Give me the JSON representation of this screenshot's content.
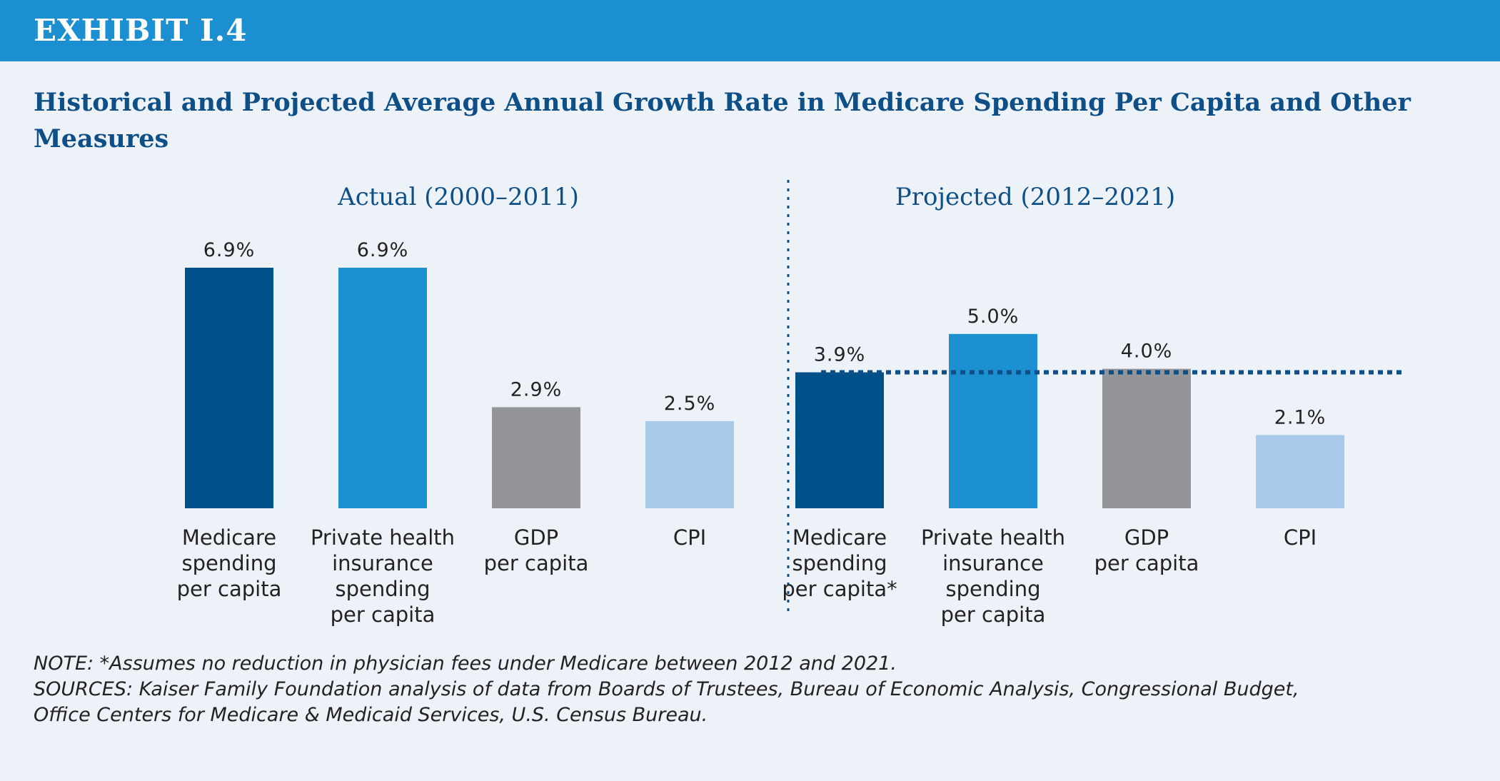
{
  "exhibit": "EXHIBIT I.4",
  "notes": {
    "note": "NOTE:  *Assumes no reduction in physician fees under Medicare between 2012 and 2021.",
    "sources_line1": "SOURCES:  Kaiser Family Foundation analysis of data from Boards of Trustees, Bureau of Economic Analysis, Congressional Budget,",
    "sources_line2": "Office Centers for Medicare & Medicaid Services, U.S. Census Bureau."
  },
  "colors": {
    "banner": "#1b8fd0",
    "background": "#edf2f9",
    "title": "#0d4f86",
    "medicare": "#00508a",
    "private": "#1b8fd0",
    "gdp": "#939598",
    "cpi": "#a9c9ea",
    "reference_line": "#0d4f86"
  },
  "chart_data": {
    "type": "bar",
    "title": "Historical and Projected Average Annual Growth Rate in Medicare Spending Per Capita and Other Measures",
    "ylim": [
      0,
      6.9
    ],
    "grid": false,
    "legend": "none",
    "panels": [
      {
        "name": "Actual (2000–2011)",
        "categories": [
          [
            "Medicare",
            "spending",
            "per capita"
          ],
          [
            "Private health",
            "insurance",
            "spending",
            "per capita"
          ],
          [
            "GDP",
            "per capita"
          ],
          [
            "CPI"
          ]
        ],
        "values": [
          6.9,
          6.9,
          2.9,
          2.5
        ],
        "labels": [
          "6.9%",
          "6.9%",
          "2.9%",
          "2.5%"
        ]
      },
      {
        "name": "Projected (2012–2021)",
        "categories": [
          [
            "Medicare",
            "spending",
            "per capita*"
          ],
          [
            "Private health",
            "insurance",
            "spending",
            "per capita"
          ],
          [
            "GDP",
            "per capita"
          ],
          [
            "CPI"
          ]
        ],
        "values": [
          3.9,
          5.0,
          4.0,
          2.1
        ],
        "labels": [
          "3.9%",
          "5.0%",
          "4.0%",
          "2.1%"
        ],
        "reference_line": 3.9
      }
    ]
  }
}
